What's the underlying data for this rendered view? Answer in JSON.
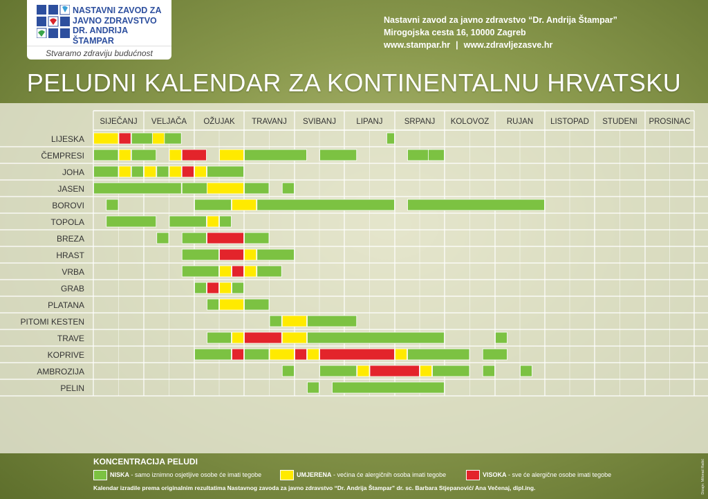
{
  "logo": {
    "name_lines": "NASTAVNI ZAVOD ZA\nJAVNO ZDRAVSTVO\nDR. ANDRIJA ŠTAMPAR",
    "slogan": "Stvaramo zdraviju budućnost"
  },
  "contact": {
    "line1": "Nastavni zavod za javno zdravstvo “Dr. Andrija Štampar”",
    "line2": "Mirogojska cesta 16, 10000 Zagreb",
    "url1": "www.stampar.hr",
    "url2": "www.zdravljezasve.hr"
  },
  "title": "PELUDNI KALENDAR ZA KONTINENTALNU HRVATSKU",
  "colors": {
    "niska": "#7cc242",
    "umjerena": "#ffea00",
    "visoka": "#e3242b"
  },
  "chart_data": {
    "type": "table",
    "months": [
      "SIJEČANJ",
      "VELJAČA",
      "OŽUJAK",
      "TRAVANJ",
      "SVIBANJ",
      "LIPANJ",
      "SRPANJ",
      "KOLOVOZ",
      "RUJAN",
      "LISTOPAD",
      "STUDENI",
      "PROSINAC"
    ],
    "level_key": {
      "N": "niska",
      "U": "umjerena",
      "V": "visoka"
    },
    "rows": [
      {
        "plant": "LIJESKA",
        "periods": [
          [
            0,
            1,
            "U"
          ],
          [
            1,
            1.5,
            "V"
          ],
          [
            1.5,
            3.5,
            "N"
          ],
          [
            2.33,
            2.83,
            "U"
          ],
          [
            11.67,
            12,
            "N"
          ]
        ]
      },
      {
        "plant": "ČEMPRESI",
        "periods": [
          [
            0,
            1,
            "N"
          ],
          [
            1,
            1.5,
            "U"
          ],
          [
            1.5,
            2.5,
            "N"
          ],
          [
            3,
            3.5,
            "U"
          ],
          [
            3.5,
            4.5,
            "V"
          ],
          [
            5,
            6,
            "U"
          ],
          [
            6,
            8.5,
            "N"
          ],
          [
            9,
            10.5,
            "N"
          ],
          [
            12.5,
            13.5,
            "N"
          ],
          [
            13.33,
            14,
            "N"
          ]
        ]
      },
      {
        "plant": "JOHA",
        "periods": [
          [
            0,
            1,
            "N"
          ],
          [
            1,
            1.5,
            "U"
          ],
          [
            1.5,
            2,
            "N"
          ],
          [
            2,
            2.5,
            "U"
          ],
          [
            2.5,
            3,
            "N"
          ],
          [
            3,
            3.5,
            "U"
          ],
          [
            3.5,
            4,
            "V"
          ],
          [
            4,
            4.5,
            "U"
          ],
          [
            4.5,
            6,
            "N"
          ]
        ]
      },
      {
        "plant": "JASEN",
        "periods": [
          [
            0,
            3.5,
            "N"
          ],
          [
            3.5,
            6,
            "N"
          ],
          [
            4.5,
            6,
            "U"
          ],
          [
            6,
            7,
            "N"
          ],
          [
            7.5,
            8,
            "N"
          ]
        ]
      },
      {
        "plant": "BOROVI",
        "periods": [
          [
            0.5,
            1,
            "N"
          ],
          [
            4,
            5.5,
            "N"
          ],
          [
            5.5,
            6.5,
            "U"
          ],
          [
            6.5,
            12,
            "N"
          ],
          [
            12.5,
            18,
            "N"
          ]
        ]
      },
      {
        "plant": "TOPOLA",
        "periods": [
          [
            0.5,
            2.5,
            "N"
          ],
          [
            3,
            4.5,
            "N"
          ],
          [
            4.5,
            5,
            "U"
          ],
          [
            5,
            5.5,
            "N"
          ]
        ]
      },
      {
        "plant": "BREZA",
        "periods": [
          [
            2.5,
            3,
            "N"
          ],
          [
            3.5,
            4.5,
            "N"
          ],
          [
            4.5,
            6,
            "V"
          ],
          [
            6,
            7,
            "N"
          ]
        ]
      },
      {
        "plant": "HRAST",
        "periods": [
          [
            3.5,
            5,
            "N"
          ],
          [
            5,
            6,
            "V"
          ],
          [
            6,
            6.5,
            "U"
          ],
          [
            6.5,
            8,
            "N"
          ]
        ]
      },
      {
        "plant": "VRBA",
        "periods": [
          [
            3.5,
            5,
            "N"
          ],
          [
            5,
            5.5,
            "U"
          ],
          [
            5.5,
            6,
            "V"
          ],
          [
            6,
            6.5,
            "U"
          ],
          [
            6.5,
            7.5,
            "N"
          ]
        ]
      },
      {
        "plant": "GRAB",
        "periods": [
          [
            4,
            4.5,
            "N"
          ],
          [
            4.5,
            5,
            "V"
          ],
          [
            5,
            5.5,
            "U"
          ],
          [
            5.5,
            6,
            "N"
          ]
        ]
      },
      {
        "plant": "PLATANA",
        "periods": [
          [
            4.5,
            5,
            "N"
          ],
          [
            5,
            6,
            "U"
          ],
          [
            6,
            7,
            "N"
          ]
        ]
      },
      {
        "plant": "PITOMI KESTEN",
        "periods": [
          [
            7,
            7.5,
            "N"
          ],
          [
            7.5,
            8.5,
            "U"
          ],
          [
            8.5,
            10.5,
            "N"
          ]
        ]
      },
      {
        "plant": "TRAVE",
        "periods": [
          [
            4.5,
            5.5,
            "N"
          ],
          [
            5.5,
            6,
            "U"
          ],
          [
            6,
            7.5,
            "V"
          ],
          [
            7.5,
            8.5,
            "U"
          ],
          [
            8.5,
            14,
            "N"
          ],
          [
            16,
            16.5,
            "N"
          ]
        ]
      },
      {
        "plant": "KOPRIVE",
        "periods": [
          [
            4,
            5.5,
            "N"
          ],
          [
            5.5,
            6,
            "V"
          ],
          [
            6,
            7,
            "N"
          ],
          [
            7,
            8,
            "U"
          ],
          [
            8,
            8.5,
            "V"
          ],
          [
            8.5,
            9,
            "U"
          ],
          [
            9,
            12,
            "V"
          ],
          [
            12,
            12.5,
            "U"
          ],
          [
            12.5,
            15,
            "N"
          ],
          [
            15.5,
            16.5,
            "N"
          ]
        ]
      },
      {
        "plant": "AMBROZIJA",
        "periods": [
          [
            7.5,
            8,
            "N"
          ],
          [
            9,
            10.5,
            "N"
          ],
          [
            10.5,
            11,
            "U"
          ],
          [
            11,
            13,
            "V"
          ],
          [
            13,
            13.5,
            "U"
          ],
          [
            13.5,
            15,
            "N"
          ],
          [
            15.5,
            16,
            "N"
          ],
          [
            17,
            17.5,
            "N"
          ]
        ]
      },
      {
        "plant": "PELIN",
        "periods": [
          [
            8.5,
            9,
            "N"
          ],
          [
            9.5,
            14,
            "N"
          ]
        ]
      }
    ]
  },
  "legend": {
    "title": "KONCENTRACIJA PELUDI",
    "niska_label": "NISKA",
    "niska_desc": "- samo iznimno osjetljive osobe će imati tegobe",
    "umjerena_label": "UMJERENA",
    "umjerena_desc": "- većina će alergičnih osoba imati tegobe",
    "visoka_label": "VISOKA",
    "visoka_desc": "- sve će alergične osobe imati tegobe"
  },
  "credit": "Kalendar izradile prema originalnim rezultatima Nastavnog zavoda za javno zdravstvo “Dr. Andrija Štampar” dr. sc. Barbara Stjepanović/ Ana Večenaj, dipl.ing.",
  "design_credit": "Dizajn: Milorad Rašić"
}
